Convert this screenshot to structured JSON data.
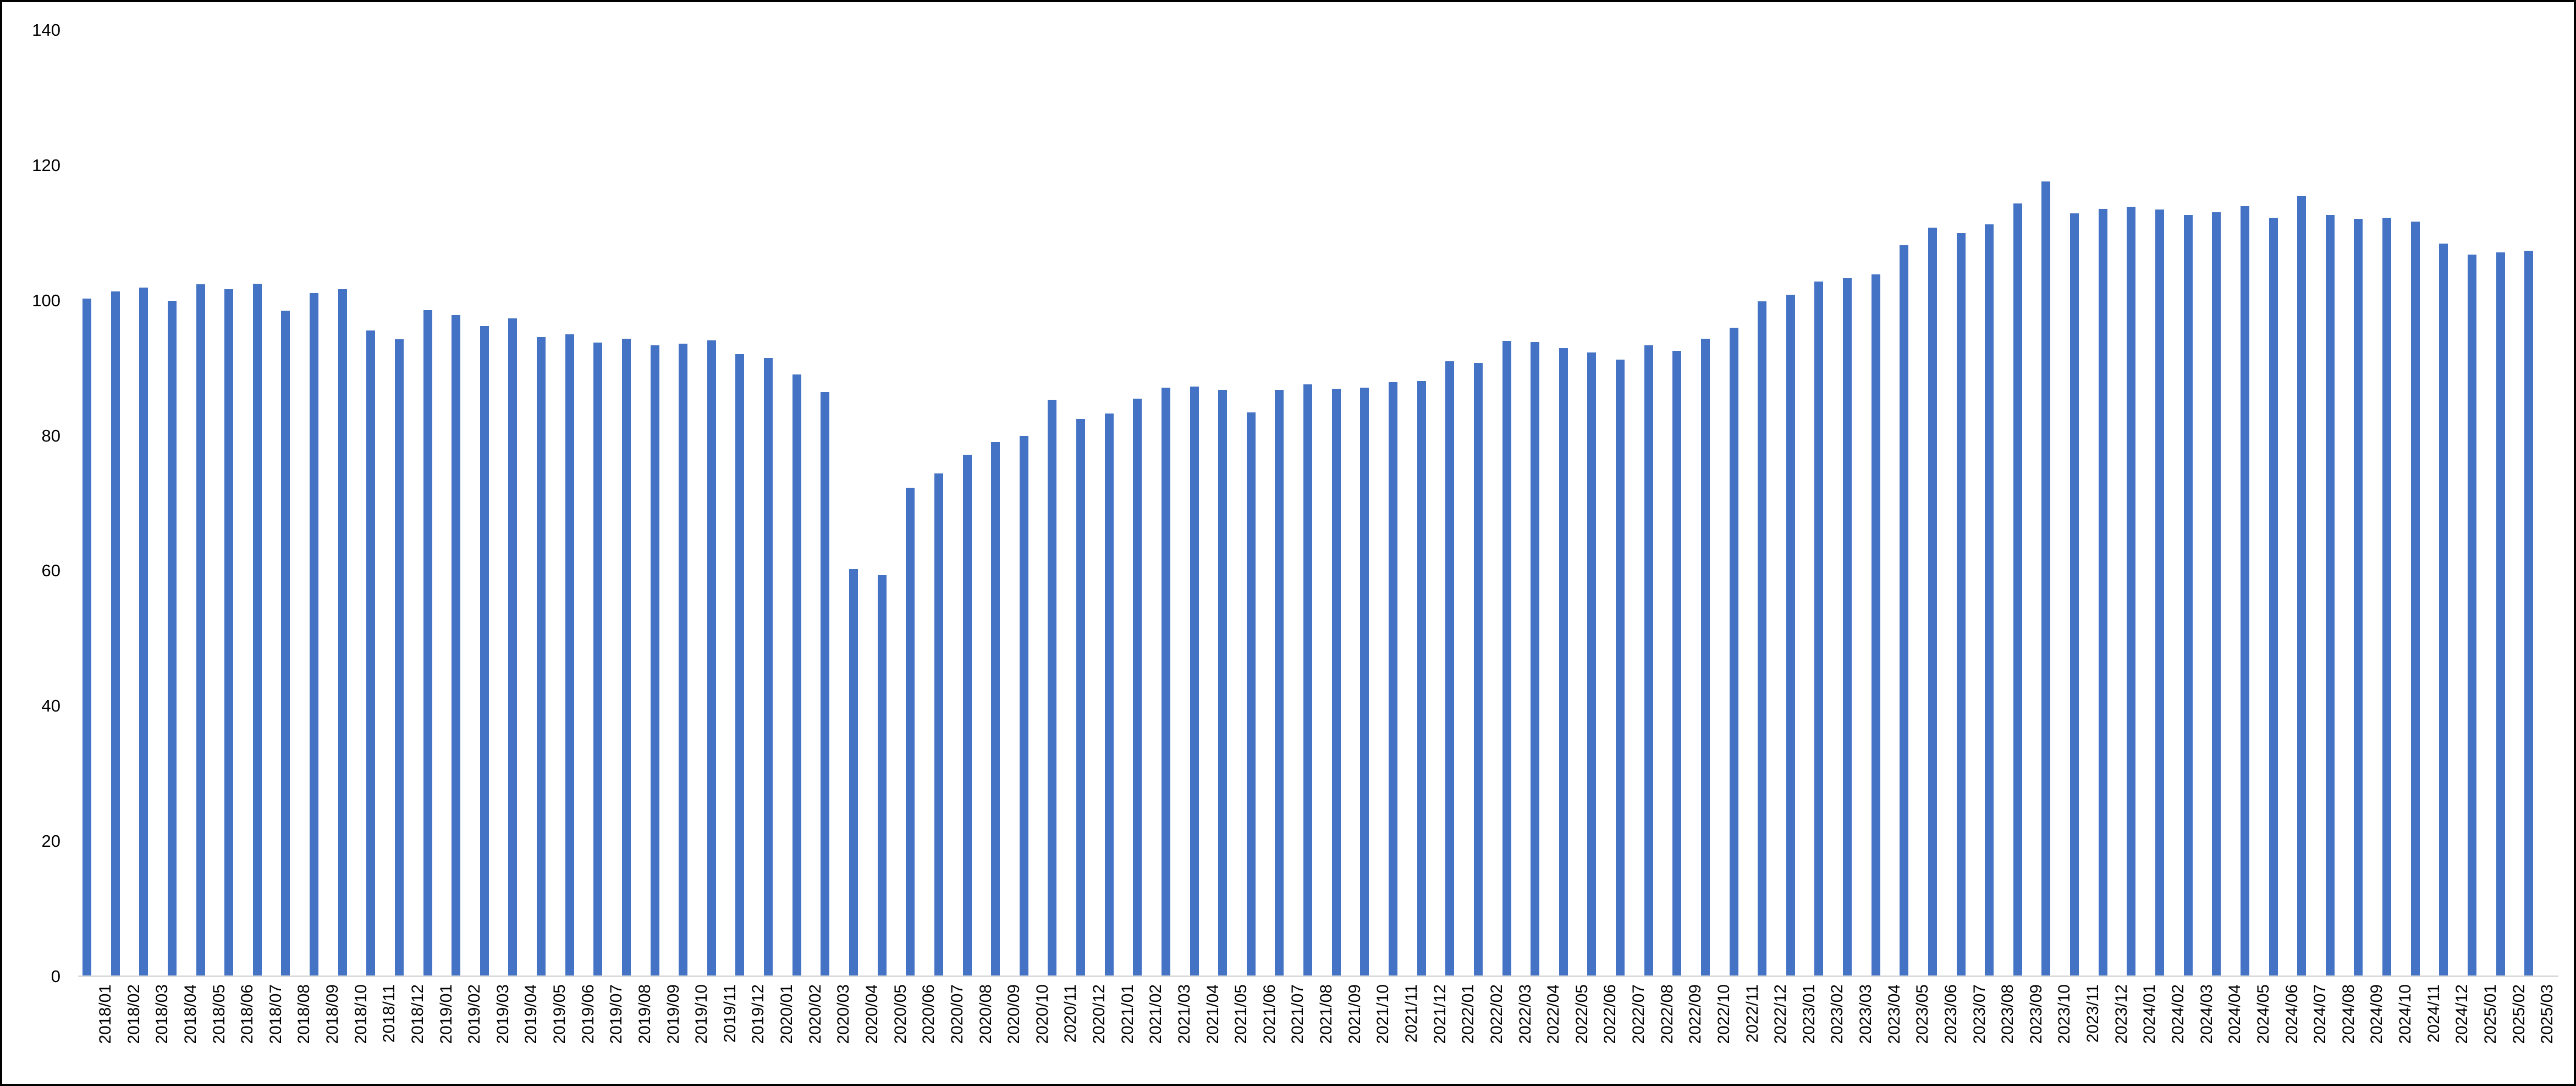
{
  "chart_data": {
    "type": "bar",
    "title": "",
    "xlabel": "",
    "ylabel": "",
    "ylim": [
      0,
      140
    ],
    "y_ticks": [
      0,
      20,
      40,
      60,
      80,
      100,
      120,
      140
    ],
    "grid": "off",
    "legend": "none",
    "bar_color": "#4472C4",
    "axis_line_color": "#D9D9D9",
    "categories": [
      "2018/01",
      "2018/02",
      "2018/03",
      "2018/04",
      "2018/05",
      "2018/06",
      "2018/07",
      "2018/08",
      "2018/09",
      "2018/10",
      "2018/11",
      "2018/12",
      "2019/01",
      "2019/02",
      "2019/03",
      "2019/04",
      "2019/05",
      "2019/06",
      "2019/07",
      "2019/08",
      "2019/09",
      "2019/10",
      "2019/11",
      "2019/12",
      "2020/01",
      "2020/02",
      "2020/03",
      "2020/04",
      "2020/05",
      "2020/06",
      "2020/07",
      "2020/08",
      "2020/09",
      "2020/10",
      "2020/11",
      "2020/12",
      "2021/01",
      "2021/02",
      "2021/03",
      "2021/04",
      "2021/05",
      "2021/06",
      "2021/07",
      "2021/08",
      "2021/09",
      "2021/10",
      "2021/11",
      "2021/12",
      "2022/01",
      "2022/02",
      "2022/03",
      "2022/04",
      "2022/05",
      "2022/06",
      "2022/07",
      "2022/08",
      "2022/09",
      "2022/10",
      "2022/11",
      "2022/12",
      "2023/01",
      "2023/02",
      "2023/03",
      "2023/04",
      "2023/05",
      "2023/06",
      "2023/07",
      "2023/08",
      "2023/09",
      "2023/10",
      "2023/11",
      "2023/12",
      "2024/01",
      "2024/02",
      "2024/03",
      "2024/04",
      "2024/05",
      "2024/06",
      "2024/07",
      "2024/08",
      "2024/09",
      "2024/10",
      "2024/11",
      "2024/12",
      "2025/01",
      "2025/02",
      "2025/03"
    ],
    "values": [
      100.3,
      101.4,
      101.9,
      100.0,
      102.4,
      101.7,
      102.5,
      98.5,
      101.1,
      101.7,
      95.6,
      94.3,
      98.6,
      97.9,
      96.2,
      97.4,
      94.6,
      95.0,
      93.8,
      94.4,
      93.4,
      93.6,
      94.1,
      92.1,
      91.5,
      89.1,
      86.5,
      60.3,
      59.4,
      72.3,
      74.4,
      77.2,
      79.1,
      80.0,
      85.3,
      82.5,
      83.3,
      85.5,
      87.1,
      87.3,
      86.8,
      83.5,
      86.8,
      87.6,
      87.0,
      87.1,
      87.9,
      88.1,
      91.0,
      90.8,
      94.0,
      93.9,
      93.0,
      92.3,
      91.3,
      93.4,
      92.6,
      94.4,
      96.0,
      99.9,
      100.9,
      102.8,
      103.3,
      103.9,
      108.2,
      110.8,
      110.0,
      111.3,
      114.4,
      117.6,
      112.9,
      113.6,
      113.9,
      113.5,
      112.7,
      113.1,
      114.0,
      112.3,
      115.5,
      112.7,
      112.1,
      112.3,
      111.7,
      108.4,
      106.8,
      107.1,
      107.4
    ]
  }
}
